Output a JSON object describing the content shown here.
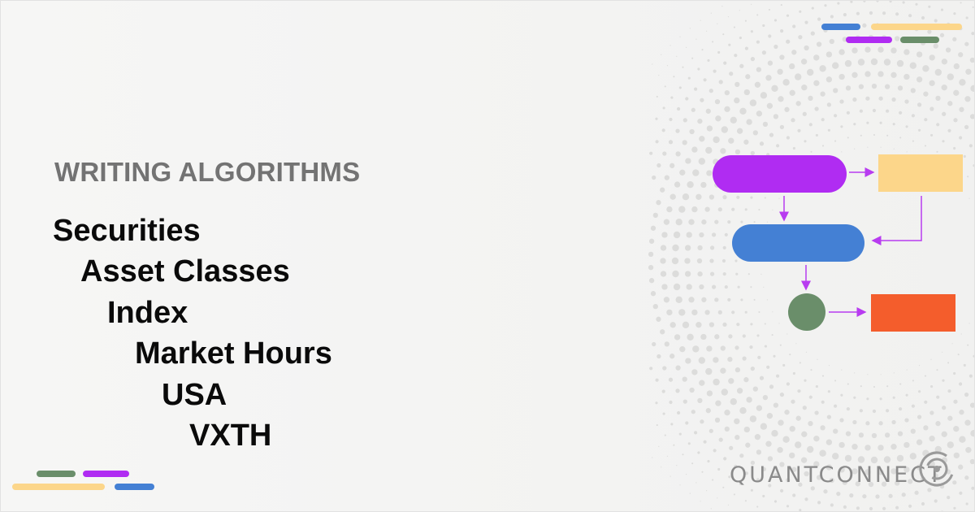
{
  "header": {
    "eyebrow": "WRITING ALGORITHMS"
  },
  "breadcrumb": {
    "items": [
      "Securities",
      "Asset Classes",
      "Index",
      "Market Hours",
      "USA",
      "VXTH"
    ]
  },
  "brand": {
    "name": "QUANTCONNECT",
    "logo_icon": "quantconnect-logo-icon"
  },
  "colors": {
    "purple": "#b02cf2",
    "yellow": "#fcd68a",
    "blue": "#4480d4",
    "green": "#6a8e6a",
    "orange": "#f45d2c",
    "arrow": "#b83cf0",
    "text_dark": "#0a0a0a",
    "text_muted": "#737373"
  },
  "diagram": {
    "nodes": [
      {
        "id": "purple-pill",
        "shape": "pill",
        "color": "purple"
      },
      {
        "id": "yellow-rect",
        "shape": "rect",
        "color": "yellow"
      },
      {
        "id": "blue-pill",
        "shape": "pill",
        "color": "blue"
      },
      {
        "id": "green-circle",
        "shape": "circle",
        "color": "green"
      },
      {
        "id": "orange-rect",
        "shape": "rect",
        "color": "orange"
      }
    ]
  }
}
